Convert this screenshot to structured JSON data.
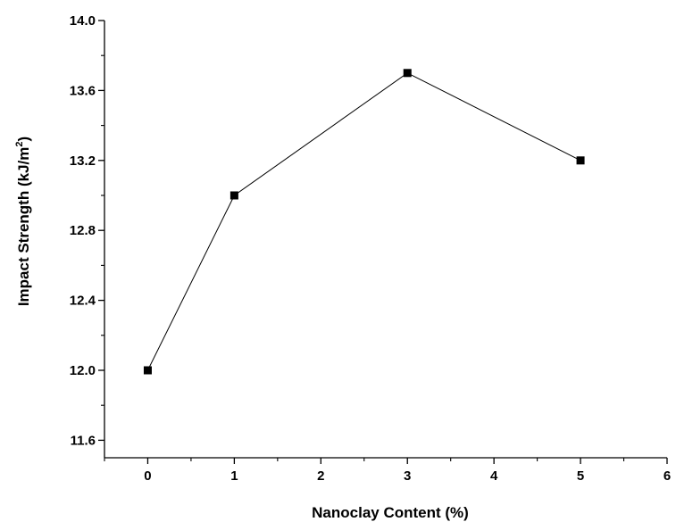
{
  "chart_data": {
    "type": "line",
    "title": "",
    "xlabel": "Nanoclay Content (%)",
    "ylabel": {
      "prefix": "Impact Strength (kJ/m",
      "superscript": "2",
      "suffix": ")"
    },
    "xlim": [
      -0.5,
      6
    ],
    "ylim": [
      11.5,
      14.0
    ],
    "xticks": [
      0,
      1,
      2,
      3,
      4,
      5,
      6
    ],
    "xtick_labels": [
      "0",
      "1",
      "2",
      "3",
      "4",
      "5",
      "6"
    ],
    "yticks": [
      11.6,
      12.0,
      12.4,
      12.8,
      13.2,
      13.6,
      14.0
    ],
    "ytick_labels": [
      "11.6",
      "12.0",
      "12.4",
      "12.8",
      "13.2",
      "13.6",
      "14.0"
    ],
    "grid": false,
    "legend": "none",
    "series": [
      {
        "marker": "square",
        "color": "#000000",
        "x": [
          0,
          1,
          3,
          5
        ],
        "y": [
          12.0,
          13.0,
          13.7,
          13.2
        ]
      }
    ]
  }
}
